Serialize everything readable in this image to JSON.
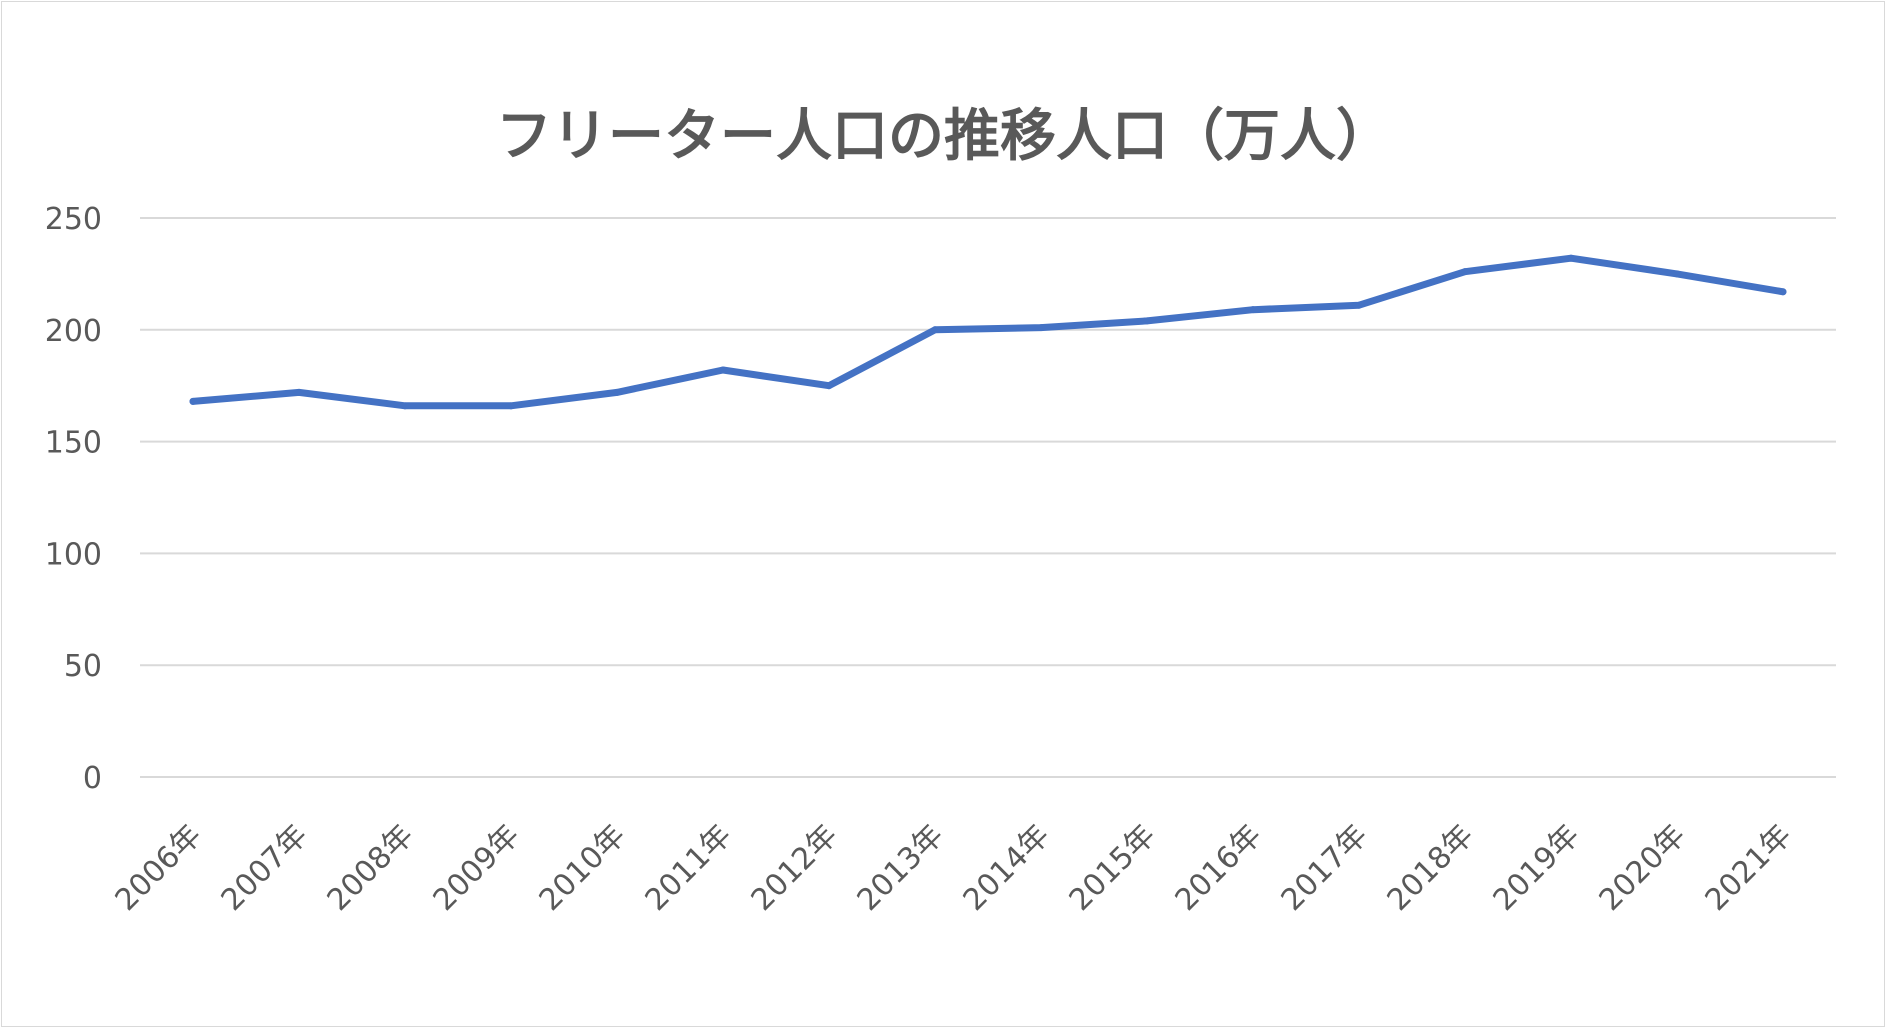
{
  "chart_data": {
    "type": "line",
    "title": "フリーター人口の推移人口（万人）",
    "xlabel": "",
    "ylabel": "",
    "categories": [
      "2006年",
      "2007年",
      "2008年",
      "2009年",
      "2010年",
      "2011年",
      "2012年",
      "2013年",
      "2014年",
      "2015年",
      "2016年",
      "2017年",
      "2018年",
      "2019年",
      "2020年",
      "2021年"
    ],
    "series": [
      {
        "values": [
          168,
          172,
          166,
          166,
          172,
          182,
          175,
          200,
          201,
          204,
          209,
          211,
          226,
          232,
          225,
          217
        ],
        "color": "#4472c4"
      }
    ],
    "ylim": [
      0,
      250
    ],
    "yticks": [
      "0",
      "50",
      "100",
      "150",
      "200",
      "250"
    ],
    "grid": true,
    "legend": "none"
  }
}
